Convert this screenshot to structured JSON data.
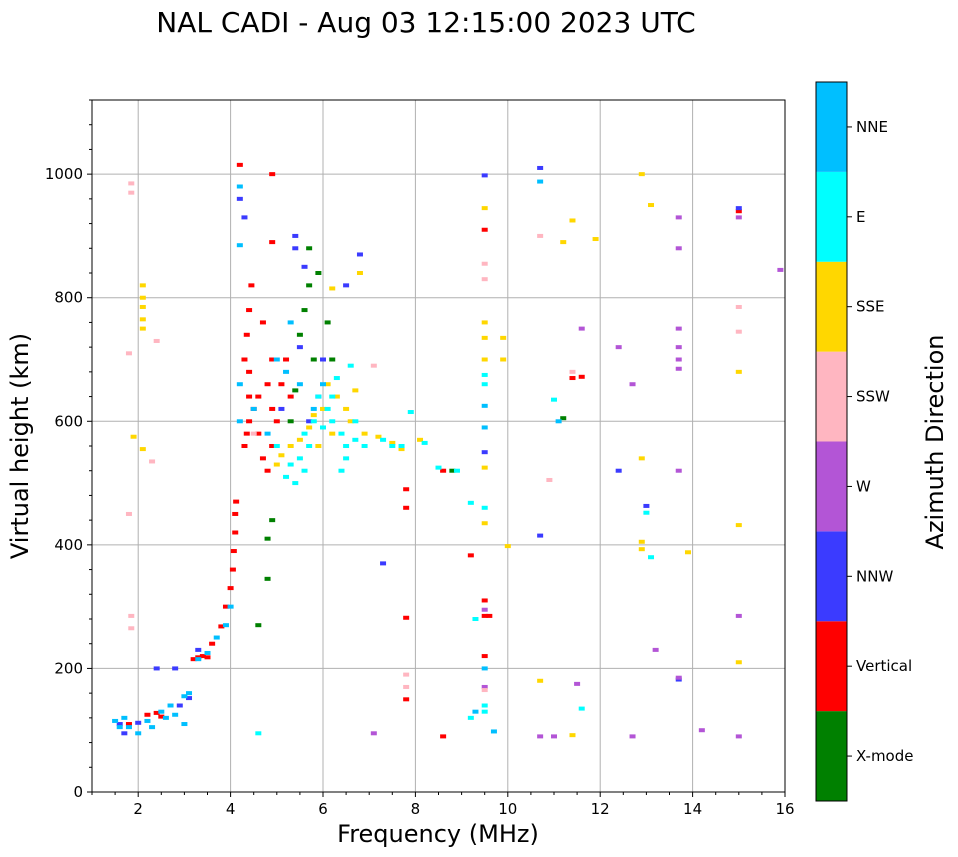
{
  "chart_data": {
    "type": "scatter",
    "title": "NAL CADI - Aug 03 12:15:00 2023 UTC",
    "xlabel": "Frequency (MHz)",
    "ylabel": "Virtual height (km)",
    "xlim": [
      1,
      16
    ],
    "ylim": [
      0,
      1120
    ],
    "xticks": [
      2,
      4,
      6,
      8,
      10,
      12,
      14,
      16
    ],
    "yticks": [
      0,
      200,
      400,
      600,
      800,
      1000
    ],
    "grid": true,
    "colorbar": {
      "label": "Azimuth Direction",
      "categories": [
        {
          "name": "X-mode",
          "color": "#008000"
        },
        {
          "name": "Vertical",
          "color": "#ff0000"
        },
        {
          "name": "NNW",
          "color": "#3b3bff"
        },
        {
          "name": "W",
          "color": "#b355d6"
        },
        {
          "name": "SSW",
          "color": "#ffb6c1"
        },
        {
          "name": "SSE",
          "color": "#ffd700"
        },
        {
          "name": "E",
          "color": "#00ffff"
        },
        {
          "name": "NNE",
          "color": "#00bfff"
        }
      ]
    },
    "series": [
      {
        "name": "Vertical",
        "points": [
          [
            1.8,
            110
          ],
          [
            2.2,
            125
          ],
          [
            2.4,
            128
          ],
          [
            2.5,
            122
          ],
          [
            3.2,
            215
          ],
          [
            3.3,
            218
          ],
          [
            3.4,
            220
          ],
          [
            3.5,
            218
          ],
          [
            3.6,
            240
          ],
          [
            3.8,
            268
          ],
          [
            3.9,
            300
          ],
          [
            4.0,
            330
          ],
          [
            4.05,
            360
          ],
          [
            4.07,
            390
          ],
          [
            4.1,
            420
          ],
          [
            4.1,
            450
          ],
          [
            4.12,
            470
          ],
          [
            4.3,
            560
          ],
          [
            4.35,
            580
          ],
          [
            4.4,
            600
          ],
          [
            4.4,
            640
          ],
          [
            4.5,
            620
          ],
          [
            4.4,
            680
          ],
          [
            4.6,
            640
          ],
          [
            4.3,
            700
          ],
          [
            4.35,
            740
          ],
          [
            4.4,
            780
          ],
          [
            4.45,
            820
          ],
          [
            4.7,
            540
          ],
          [
            4.8,
            520
          ],
          [
            4.9,
            560
          ],
          [
            5.0,
            600
          ],
          [
            4.9,
            700
          ],
          [
            5.1,
            660
          ],
          [
            4.7,
            760
          ],
          [
            4.9,
            620
          ],
          [
            5.2,
            700
          ],
          [
            5.3,
            640
          ],
          [
            4.6,
            580
          ],
          [
            4.8,
            660
          ],
          [
            4.2,
            1015
          ],
          [
            4.9,
            1000
          ],
          [
            4.9,
            890
          ],
          [
            8.6,
            90
          ],
          [
            8.6,
            520
          ],
          [
            9.5,
            310
          ],
          [
            9.5,
            285
          ],
          [
            9.6,
            285
          ],
          [
            9.5,
            220
          ],
          [
            9.5,
            910
          ],
          [
            9.2,
            383
          ],
          [
            7.8,
            282
          ],
          [
            7.8,
            490
          ],
          [
            7.8,
            460
          ],
          [
            7.8,
            150
          ],
          [
            11.4,
            670
          ],
          [
            11.6,
            672
          ],
          [
            15.0,
            940
          ]
        ]
      },
      {
        "name": "NNW",
        "points": [
          [
            1.6,
            110
          ],
          [
            1.7,
            95
          ],
          [
            2.0,
            112
          ],
          [
            2.4,
            200
          ],
          [
            2.8,
            200
          ],
          [
            2.9,
            140
          ],
          [
            3.1,
            152
          ],
          [
            3.3,
            230
          ],
          [
            4.2,
            960
          ],
          [
            4.3,
            930
          ],
          [
            5.4,
            900
          ],
          [
            5.4,
            880
          ],
          [
            5.6,
            850
          ],
          [
            6.5,
            820
          ],
          [
            6.0,
            700
          ],
          [
            5.9,
            640
          ],
          [
            5.1,
            620
          ],
          [
            5.5,
            720
          ],
          [
            5.7,
            600
          ],
          [
            6.8,
            870
          ],
          [
            7.3,
            370
          ],
          [
            9.5,
            550
          ],
          [
            9.5,
            998
          ],
          [
            10.7,
            1010
          ],
          [
            10.7,
            415
          ],
          [
            12.4,
            520
          ],
          [
            13.0,
            463
          ],
          [
            13.7,
            182
          ],
          [
            15.0,
            945
          ]
        ]
      },
      {
        "name": "X-mode",
        "points": [
          [
            4.6,
            270
          ],
          [
            4.8,
            410
          ],
          [
            4.8,
            345
          ],
          [
            4.9,
            440
          ],
          [
            5.3,
            600
          ],
          [
            5.5,
            740
          ],
          [
            5.6,
            780
          ],
          [
            5.7,
            820
          ],
          [
            5.8,
            700
          ],
          [
            5.9,
            840
          ],
          [
            6.1,
            760
          ],
          [
            6.2,
            700
          ],
          [
            5.4,
            650
          ],
          [
            5.7,
            880
          ],
          [
            8.8,
            520
          ],
          [
            11.2,
            605
          ]
        ]
      },
      {
        "name": "W",
        "points": [
          [
            7.1,
            95
          ],
          [
            9.5,
            170
          ],
          [
            10.7,
            90
          ],
          [
            11.0,
            90
          ],
          [
            11.5,
            175
          ],
          [
            12.4,
            720
          ],
          [
            12.7,
            660
          ],
          [
            12.7,
            90
          ],
          [
            13.2,
            230
          ],
          [
            13.7,
            930
          ],
          [
            13.7,
            880
          ],
          [
            13.7,
            750
          ],
          [
            13.7,
            720
          ],
          [
            13.7,
            700
          ],
          [
            13.7,
            685
          ],
          [
            13.7,
            520
          ],
          [
            13.7,
            185
          ],
          [
            14.2,
            100
          ],
          [
            15.0,
            285
          ],
          [
            15.0,
            90
          ],
          [
            15.0,
            930
          ],
          [
            15.9,
            845
          ],
          [
            11.6,
            750
          ],
          [
            9.5,
            295
          ]
        ]
      },
      {
        "name": "SSW",
        "points": [
          [
            1.85,
            985
          ],
          [
            1.85,
            970
          ],
          [
            1.8,
            710
          ],
          [
            1.85,
            285
          ],
          [
            1.85,
            265
          ],
          [
            2.4,
            730
          ],
          [
            2.3,
            535
          ],
          [
            1.8,
            450
          ],
          [
            4.5,
            580
          ],
          [
            7.1,
            690
          ],
          [
            7.8,
            190
          ],
          [
            7.8,
            170
          ],
          [
            9.5,
            855
          ],
          [
            9.5,
            830
          ],
          [
            9.5,
            165
          ],
          [
            10.7,
            900
          ],
          [
            10.9,
            505
          ],
          [
            11.4,
            680
          ],
          [
            15.0,
            785
          ],
          [
            15.0,
            745
          ]
        ]
      },
      {
        "name": "SSE",
        "points": [
          [
            2.1,
            820
          ],
          [
            2.1,
            800
          ],
          [
            2.1,
            785
          ],
          [
            2.1,
            765
          ],
          [
            2.1,
            750
          ],
          [
            1.9,
            575
          ],
          [
            2.1,
            555
          ],
          [
            5.1,
            545
          ],
          [
            5.3,
            560
          ],
          [
            5.5,
            570
          ],
          [
            5.7,
            590
          ],
          [
            5.8,
            610
          ],
          [
            6.0,
            620
          ],
          [
            6.1,
            660
          ],
          [
            6.3,
            640
          ],
          [
            6.5,
            620
          ],
          [
            6.6,
            600
          ],
          [
            6.7,
            650
          ],
          [
            6.9,
            580
          ],
          [
            7.2,
            575
          ],
          [
            7.5,
            565
          ],
          [
            7.7,
            555
          ],
          [
            6.2,
            580
          ],
          [
            5.9,
            560
          ],
          [
            6.2,
            815
          ],
          [
            6.8,
            840
          ],
          [
            9.5,
            945
          ],
          [
            9.5,
            760
          ],
          [
            9.5,
            735
          ],
          [
            9.5,
            700
          ],
          [
            9.5,
            525
          ],
          [
            9.5,
            435
          ],
          [
            9.9,
            735
          ],
          [
            9.9,
            700
          ],
          [
            10.0,
            398
          ],
          [
            10.7,
            180
          ],
          [
            11.2,
            890
          ],
          [
            11.4,
            925
          ],
          [
            11.9,
            895
          ],
          [
            12.9,
            1000
          ],
          [
            13.1,
            950
          ],
          [
            12.9,
            540
          ],
          [
            12.9,
            405
          ],
          [
            12.9,
            393
          ],
          [
            13.9,
            388
          ],
          [
            15.0,
            680
          ],
          [
            15.0,
            432
          ],
          [
            15.0,
            210
          ],
          [
            11.4,
            92
          ],
          [
            8.1,
            570
          ],
          [
            5.0,
            530
          ]
        ]
      },
      {
        "name": "E",
        "points": [
          [
            4.6,
            95
          ],
          [
            5.2,
            510
          ],
          [
            5.3,
            530
          ],
          [
            5.4,
            500
          ],
          [
            5.6,
            520
          ],
          [
            5.7,
            560
          ],
          [
            5.8,
            600
          ],
          [
            6.0,
            590
          ],
          [
            6.2,
            600
          ],
          [
            6.4,
            580
          ],
          [
            6.5,
            560
          ],
          [
            6.7,
            570
          ],
          [
            6.5,
            540
          ],
          [
            6.4,
            520
          ],
          [
            6.2,
            640
          ],
          [
            6.1,
            620
          ],
          [
            5.9,
            640
          ],
          [
            6.6,
            690
          ],
          [
            6.7,
            600
          ],
          [
            6.9,
            560
          ],
          [
            7.3,
            570
          ],
          [
            7.5,
            560
          ],
          [
            7.7,
            560
          ],
          [
            7.9,
            615
          ],
          [
            8.2,
            565
          ],
          [
            8.5,
            525
          ],
          [
            8.9,
            520
          ],
          [
            9.2,
            468
          ],
          [
            9.3,
            280
          ],
          [
            9.5,
            675
          ],
          [
            9.5,
            660
          ],
          [
            9.5,
            460
          ],
          [
            9.5,
            140
          ],
          [
            9.5,
            130
          ],
          [
            9.2,
            120
          ],
          [
            11.0,
            635
          ],
          [
            11.6,
            135
          ],
          [
            13.0,
            452
          ],
          [
            13.1,
            380
          ],
          [
            5.0,
            560
          ],
          [
            5.5,
            540
          ],
          [
            5.6,
            580
          ],
          [
            6.3,
            670
          ]
        ]
      },
      {
        "name": "NNE",
        "points": [
          [
            1.5,
            115
          ],
          [
            1.6,
            105
          ],
          [
            1.7,
            120
          ],
          [
            1.8,
            105
          ],
          [
            2.0,
            95
          ],
          [
            2.2,
            115
          ],
          [
            2.3,
            105
          ],
          [
            2.5,
            130
          ],
          [
            2.6,
            120
          ],
          [
            2.7,
            140
          ],
          [
            2.8,
            125
          ],
          [
            3.0,
            110
          ],
          [
            3.0,
            155
          ],
          [
            3.1,
            160
          ],
          [
            3.3,
            215
          ],
          [
            3.5,
            225
          ],
          [
            3.7,
            250
          ],
          [
            3.9,
            270
          ],
          [
            4.0,
            300
          ],
          [
            4.2,
            980
          ],
          [
            4.2,
            885
          ],
          [
            4.2,
            600
          ],
          [
            4.2,
            660
          ],
          [
            4.5,
            620
          ],
          [
            4.8,
            580
          ],
          [
            5.0,
            700
          ],
          [
            5.2,
            680
          ],
          [
            5.3,
            760
          ],
          [
            5.5,
            660
          ],
          [
            5.8,
            620
          ],
          [
            6.0,
            660
          ],
          [
            9.5,
            590
          ],
          [
            9.5,
            625
          ],
          [
            9.5,
            200
          ],
          [
            10.7,
            988
          ],
          [
            11.1,
            600
          ],
          [
            9.3,
            130
          ],
          [
            9.7,
            98
          ]
        ]
      }
    ]
  }
}
